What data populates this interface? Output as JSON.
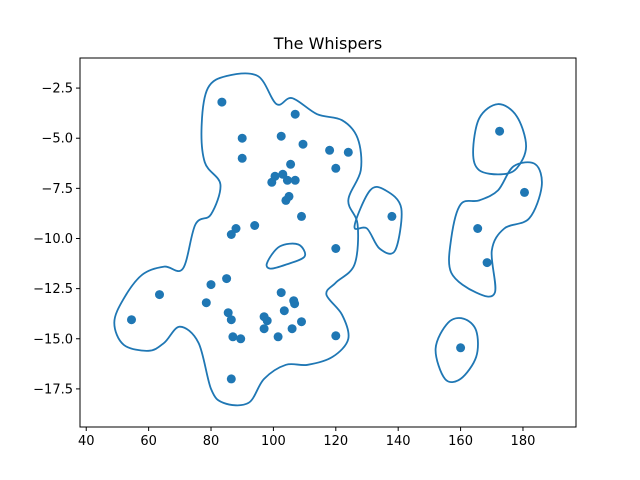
{
  "chart_data": {
    "type": "scatter",
    "title": "The Whispers",
    "xlabel": "",
    "ylabel": "",
    "xlim": [
      38,
      197
    ],
    "ylim": [
      -19.4,
      -1.0
    ],
    "xticks": [
      40,
      60,
      80,
      100,
      120,
      140,
      160,
      180
    ],
    "yticks": [
      -2.5,
      -5.0,
      -7.5,
      -10.0,
      -12.5,
      -15.0,
      -17.5
    ],
    "grid": false,
    "color": "#1f77b4",
    "points": [
      [
        83.5,
        -3.2
      ],
      [
        107,
        -3.8
      ],
      [
        90,
        -5.0
      ],
      [
        102.5,
        -4.9
      ],
      [
        109.5,
        -5.3
      ],
      [
        90,
        -6.0
      ],
      [
        118,
        -5.6
      ],
      [
        124,
        -5.7
      ],
      [
        105.5,
        -6.3
      ],
      [
        120,
        -6.5
      ],
      [
        103,
        -6.8
      ],
      [
        100.5,
        -6.9
      ],
      [
        104.5,
        -7.1
      ],
      [
        107,
        -7.1
      ],
      [
        99.5,
        -7.2
      ],
      [
        105,
        -7.9
      ],
      [
        104,
        -8.1
      ],
      [
        109,
        -8.9
      ],
      [
        138,
        -8.9
      ],
      [
        94,
        -9.35
      ],
      [
        88,
        -9.5
      ],
      [
        86.5,
        -9.8
      ],
      [
        120,
        -10.5
      ],
      [
        85,
        -12.0
      ],
      [
        80,
        -12.3
      ],
      [
        63.5,
        -12.8
      ],
      [
        102.5,
        -12.7
      ],
      [
        106.5,
        -13.1
      ],
      [
        106.8,
        -13.25
      ],
      [
        78.5,
        -13.2
      ],
      [
        103.5,
        -13.6
      ],
      [
        85.5,
        -13.7
      ],
      [
        97,
        -13.9
      ],
      [
        98,
        -14.1
      ],
      [
        86.5,
        -14.05
      ],
      [
        109,
        -14.15
      ],
      [
        54.5,
        -14.05
      ],
      [
        106,
        -14.5
      ],
      [
        97,
        -14.5
      ],
      [
        87,
        -14.9
      ],
      [
        89.5,
        -15.0
      ],
      [
        101.5,
        -14.9
      ],
      [
        120,
        -14.85
      ],
      [
        86.5,
        -17.0
      ],
      [
        172.5,
        -4.65
      ],
      [
        180.5,
        -7.7
      ],
      [
        165.5,
        -9.5
      ],
      [
        168.5,
        -11.2
      ],
      [
        160,
        -15.45
      ]
    ],
    "contours": [
      [
        [
          85,
          -1.9
        ],
        [
          95,
          -1.9
        ],
        [
          101,
          -3.3
        ],
        [
          106,
          -3.0
        ],
        [
          114,
          -3.8
        ],
        [
          122,
          -4.1
        ],
        [
          127,
          -5.0
        ],
        [
          128,
          -6.6
        ],
        [
          124,
          -8.1
        ],
        [
          127,
          -9.3
        ],
        [
          126,
          -11.3
        ],
        [
          120,
          -12.2
        ],
        [
          117,
          -12.8
        ],
        [
          122,
          -13.8
        ],
        [
          124,
          -15.0
        ],
        [
          119,
          -15.9
        ],
        [
          111,
          -16.3
        ],
        [
          104,
          -16.3
        ],
        [
          97,
          -17.0
        ],
        [
          92,
          -18.2
        ],
        [
          84,
          -18.2
        ],
        [
          80,
          -17.5
        ],
        [
          76,
          -15.2
        ],
        [
          70,
          -14.4
        ],
        [
          65,
          -15.2
        ],
        [
          60,
          -15.6
        ],
        [
          52,
          -15.3
        ],
        [
          49,
          -14.2
        ],
        [
          52,
          -13.0
        ],
        [
          58,
          -11.8
        ],
        [
          65,
          -11.4
        ],
        [
          71,
          -11.5
        ],
        [
          75,
          -9.3
        ],
        [
          80,
          -8.8
        ],
        [
          83,
          -7.3
        ],
        [
          78,
          -6.2
        ],
        [
          77,
          -4.3
        ],
        [
          79,
          -2.5
        ]
      ],
      [
        [
          98,
          -11.2
        ],
        [
          102,
          -10.4
        ],
        [
          108,
          -10.3
        ],
        [
          110,
          -10.9
        ],
        [
          104,
          -11.3
        ],
        [
          99,
          -11.5
        ]
      ],
      [
        [
          126,
          -9.4
        ],
        [
          131,
          -7.6
        ],
        [
          136,
          -7.6
        ],
        [
          141,
          -8.5
        ],
        [
          139,
          -10.6
        ],
        [
          134,
          -10.5
        ],
        [
          130,
          -9.5
        ]
      ],
      [
        [
          164,
          -5.7
        ],
        [
          166,
          -4.0
        ],
        [
          172,
          -3.3
        ],
        [
          178,
          -3.9
        ],
        [
          181,
          -5.4
        ],
        [
          178,
          -6.5
        ],
        [
          173,
          -6.8
        ],
        [
          166,
          -6.6
        ]
      ],
      [
        [
          157,
          -10.0
        ],
        [
          160,
          -8.3
        ],
        [
          166,
          -8.1
        ],
        [
          172,
          -7.6
        ],
        [
          177,
          -6.4
        ],
        [
          184,
          -6.3
        ],
        [
          186,
          -7.4
        ],
        [
          182,
          -9.0
        ],
        [
          174,
          -9.5
        ],
        [
          170,
          -10.6
        ],
        [
          171,
          -12.7
        ],
        [
          165,
          -12.7
        ],
        [
          157,
          -11.7
        ]
      ],
      [
        [
          152,
          -15.5
        ],
        [
          156,
          -14.2
        ],
        [
          161,
          -14.0
        ],
        [
          165,
          -14.6
        ],
        [
          165,
          -15.9
        ],
        [
          160,
          -17.0
        ],
        [
          155,
          -17.0
        ]
      ]
    ]
  }
}
